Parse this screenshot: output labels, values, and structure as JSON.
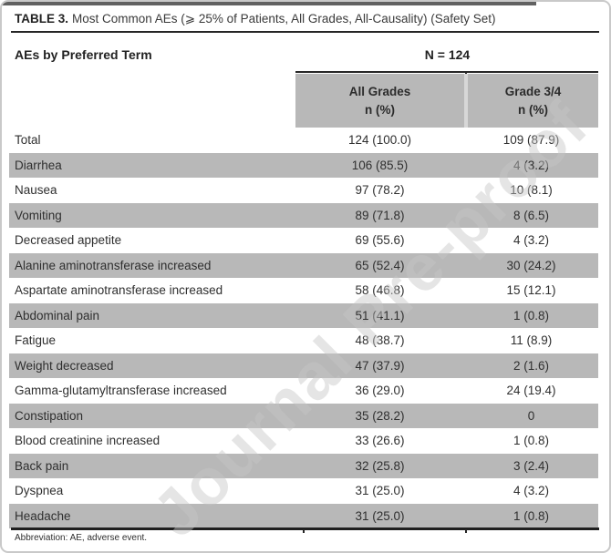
{
  "table": {
    "title_label": "TABLE 3.",
    "title_text": "Most Common AEs (⩾ 25% of Patients, All Grades, All-Causality) (Safety Set)",
    "row_header_label": "AEs by Preferred Term",
    "n_label": "N = 124",
    "columns": [
      {
        "label": "All Grades",
        "sub": "n (%)"
      },
      {
        "label": "Grade 3/4",
        "sub": "n (%)"
      }
    ],
    "rows": [
      {
        "term": "Total",
        "all_grades": "124 (100.0)",
        "grade34": "109 (87.9)"
      },
      {
        "term": "Diarrhea",
        "all_grades": "106 (85.5)",
        "grade34": "4 (3.2)"
      },
      {
        "term": "Nausea",
        "all_grades": "97 (78.2)",
        "grade34": "10 (8.1)"
      },
      {
        "term": "Vomiting",
        "all_grades": "89 (71.8)",
        "grade34": "8 (6.5)"
      },
      {
        "term": "Decreased appetite",
        "all_grades": "69 (55.6)",
        "grade34": "4 (3.2)"
      },
      {
        "term": "Alanine aminotransferase increased",
        "all_grades": "65 (52.4)",
        "grade34": "30 (24.2)"
      },
      {
        "term": "Aspartate aminotransferase increased",
        "all_grades": "58 (46.8)",
        "grade34": "15 (12.1)"
      },
      {
        "term": "Abdominal pain",
        "all_grades": "51 (41.1)",
        "grade34": "1 (0.8)"
      },
      {
        "term": "Fatigue",
        "all_grades": "48 (38.7)",
        "grade34": "11 (8.9)"
      },
      {
        "term": "Weight decreased",
        "all_grades": "47 (37.9)",
        "grade34": "2 (1.6)"
      },
      {
        "term": "Gamma-glutamyltransferase increased",
        "all_grades": "36 (29.0)",
        "grade34": "24 (19.4)"
      },
      {
        "term": "Constipation",
        "all_grades": "35 (28.2)",
        "grade34": "0"
      },
      {
        "term": "Blood creatinine increased",
        "all_grades": "33 (26.6)",
        "grade34": "1 (0.8)"
      },
      {
        "term": "Back pain",
        "all_grades": "32 (25.8)",
        "grade34": "3 (2.4)"
      },
      {
        "term": "Dyspnea",
        "all_grades": "31 (25.0)",
        "grade34": "4 (3.2)"
      },
      {
        "term": "Headache",
        "all_grades": "31 (25.0)",
        "grade34": "1 (0.8)"
      }
    ],
    "footnote": "Abbreviation: AE, adverse event."
  },
  "watermark": {
    "text": "Journal Pre-proof"
  },
  "colors": {
    "row_shade": "#b8b8b8",
    "rule": "#262626",
    "frame_border": "#c9c9c9",
    "top_strip": "#616161"
  }
}
